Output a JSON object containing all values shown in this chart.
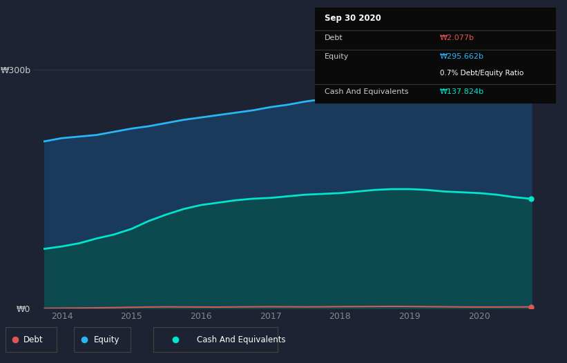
{
  "bg_color": "#1d2333",
  "plot_bg_color": "#1d2333",
  "grid_color": "#2d3a4e",
  "years": [
    2013.75,
    2014.0,
    2014.25,
    2014.5,
    2014.75,
    2015.0,
    2015.25,
    2015.5,
    2015.75,
    2016.0,
    2016.25,
    2016.5,
    2016.75,
    2017.0,
    2017.25,
    2017.5,
    2017.75,
    2018.0,
    2018.25,
    2018.5,
    2018.75,
    2019.0,
    2019.25,
    2019.5,
    2019.75,
    2020.0,
    2020.25,
    2020.5,
    2020.75
  ],
  "equity": [
    210,
    214,
    216,
    218,
    222,
    226,
    229,
    233,
    237,
    240,
    243,
    246,
    249,
    253,
    256,
    260,
    263,
    267,
    270,
    273,
    275,
    278,
    281,
    284,
    287,
    289,
    291,
    293,
    295.662
  ],
  "cash": [
    75,
    78,
    82,
    88,
    93,
    100,
    110,
    118,
    125,
    130,
    133,
    136,
    138,
    139,
    141,
    143,
    144,
    145,
    147,
    149,
    150,
    150,
    149,
    147,
    146,
    145,
    143,
    140,
    137.824
  ],
  "debt": [
    0.3,
    0.5,
    0.7,
    0.9,
    1.2,
    1.6,
    1.9,
    2.1,
    2.0,
    1.9,
    1.8,
    2.0,
    2.2,
    2.3,
    2.2,
    2.1,
    2.2,
    2.4,
    2.5,
    2.6,
    2.7,
    2.6,
    2.4,
    2.2,
    2.0,
    1.9,
    1.9,
    2.0,
    2.077
  ],
  "equity_line_color": "#29b6f6",
  "equity_fill_color": "#1a3a5c",
  "cash_line_color": "#00e5cc",
  "cash_fill_color": "#0d4a50",
  "debt_line_color": "#e05555",
  "ylim": [
    0,
    310
  ],
  "xlim": [
    2013.6,
    2021.1
  ],
  "yticks": [
    0,
    300
  ],
  "ytick_labels": [
    "₩0",
    "₩300b"
  ],
  "xticks": [
    2014,
    2015,
    2016,
    2017,
    2018,
    2019,
    2020
  ],
  "xtick_labels": [
    "2014",
    "2015",
    "2016",
    "2017",
    "2018",
    "2019",
    "2020"
  ],
  "tooltip_title": "Sep 30 2020",
  "tooltip_debt_label": "Debt",
  "tooltip_debt_value": "₩2.077b",
  "tooltip_equity_label": "Equity",
  "tooltip_equity_value": "₩295.662b",
  "tooltip_ratio": "0.7% Debt/Equity Ratio",
  "tooltip_cash_label": "Cash And Equivalents",
  "tooltip_cash_value": "₩137.824b",
  "tooltip_debt_color": "#e05555",
  "tooltip_equity_color": "#29b6f6",
  "tooltip_cash_color": "#00e5cc",
  "legend_items": [
    "Debt",
    "Equity",
    "Cash And Equivalents"
  ],
  "legend_colors": [
    "#e05555",
    "#29b6f6",
    "#00e5cc"
  ]
}
